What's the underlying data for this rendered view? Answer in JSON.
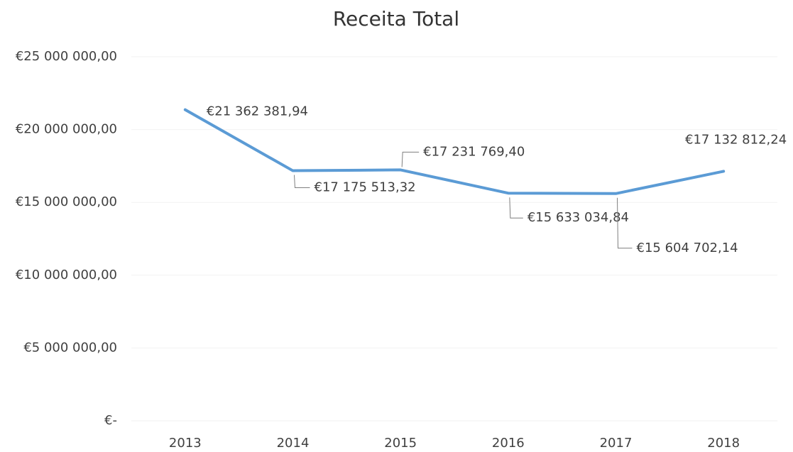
{
  "chart_data": {
    "type": "line",
    "title": "Receita Total",
    "categories": [
      "2013",
      "2014",
      "2015",
      "2016",
      "2017",
      "2018"
    ],
    "values": [
      21362381.94,
      17175513.32,
      17231769.4,
      15633034.84,
      15604702.14,
      17132812.24
    ],
    "value_labels": [
      "€21 362 381,94",
      "€17 175 513,32",
      "€17 231 769,40",
      "€15 633 034,84",
      "€15 604 702,14",
      "€17 132 812,24"
    ],
    "color": "#5b9bd5",
    "ylim": [
      0,
      25000000
    ],
    "yticks": [
      {
        "value": 0,
        "label": "€-"
      },
      {
        "value": 5000000,
        "label": "€5 000 000,00"
      },
      {
        "value": 10000000,
        "label": "€10 000 000,00"
      },
      {
        "value": 15000000,
        "label": "€15 000 000,00"
      },
      {
        "value": 20000000,
        "label": "€20 000 000,00"
      },
      {
        "value": 25000000,
        "label": "€25 000 000,00"
      }
    ],
    "grid": true
  }
}
